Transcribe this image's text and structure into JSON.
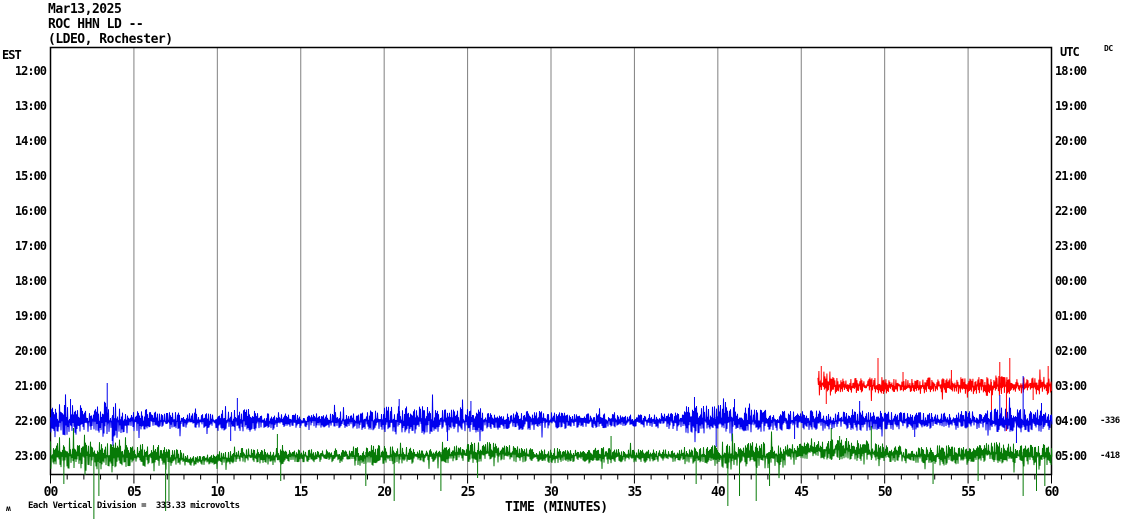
{
  "header": {
    "date": "Mar13,2025",
    "station": "ROC HHN LD --",
    "network": "(LDEO, Rochester)"
  },
  "axes": {
    "left_label": "EST",
    "right_label": "UTC",
    "dc_label": "DC",
    "left_times": [
      "12:00",
      "13:00",
      "14:00",
      "15:00",
      "16:00",
      "17:00",
      "18:00",
      "19:00",
      "20:00",
      "21:00",
      "22:00",
      "23:00"
    ],
    "right_times": [
      "18:00",
      "19:00",
      "20:00",
      "21:00",
      "22:00",
      "23:00",
      "00:00",
      "01:00",
      "02:00",
      "03:00",
      "04:00",
      "05:00"
    ],
    "x_labels": [
      "00",
      "05",
      "10",
      "15",
      "20",
      "25",
      "30",
      "35",
      "40",
      "45",
      "50",
      "55",
      "60"
    ],
    "x_title": "TIME (MINUTES)",
    "dc_values": [
      {
        "row": 10,
        "utc": "04:00",
        "value": "-336"
      },
      {
        "row": 11,
        "utc": "05:00",
        "value": "-418"
      }
    ]
  },
  "footer": {
    "glyph": "ʍ",
    "text": "Each Vertical Division =  333.33 microvolts"
  },
  "colors": {
    "trace_red": "#ff0000",
    "trace_blue": "#0000ee",
    "trace_green": "#077a07",
    "grid": "#808080",
    "border": "#000000",
    "text": "#000000",
    "background": "#ffffff"
  },
  "chart_data": {
    "type": "line",
    "title": "ROC HHN LD -- (LDEO, Rochester) helicorder, Mar13,2025",
    "xlabel": "TIME (MINUTES)",
    "x_range": [
      0,
      60
    ],
    "x_major_tick": 5,
    "x_minor_tick": 1,
    "grid": "vertical gray lines every 5 minutes",
    "rows_est": [
      "12:00",
      "13:00",
      "14:00",
      "15:00",
      "16:00",
      "17:00",
      "18:00",
      "19:00",
      "20:00",
      "21:00",
      "22:00",
      "23:00"
    ],
    "rows_utc": [
      "18:00",
      "19:00",
      "20:00",
      "21:00",
      "22:00",
      "23:00",
      "00:00",
      "01:00",
      "02:00",
      "03:00",
      "04:00",
      "05:00"
    ],
    "vertical_division_microvolts": 333.33,
    "amplitude_units": "pixels (one vertical division = 35 px = 333.33 microvolts)",
    "series": [
      {
        "name": "21:00 EST / 03:00 UTC",
        "color_key": "trace_red",
        "row": 9,
        "start_min": 46,
        "end_min": 60,
        "seed": 99,
        "amp_env": [
          13,
          8,
          8,
          9,
          8,
          8,
          9,
          8,
          9,
          9,
          11,
          10,
          9,
          10
        ],
        "base_off": [
          2,
          0,
          0,
          0,
          0,
          0,
          0,
          0,
          0,
          0,
          0,
          0,
          0,
          0
        ],
        "spikes": [
          {
            "m": 46.2,
            "v": 20
          },
          {
            "m": 46.5,
            "v": -18
          },
          {
            "m": 49.6,
            "v": 28
          },
          {
            "m": 51.1,
            "v": 14
          },
          {
            "m": 54.0,
            "v": 16
          },
          {
            "m": 56.4,
            "v": -24
          },
          {
            "m": 56.9,
            "v": 24
          },
          {
            "m": 57.3,
            "v": -45
          },
          {
            "m": 57.5,
            "v": 28
          },
          {
            "m": 58.9,
            "v": -14
          },
          {
            "m": 59.8,
            "v": 20
          }
        ]
      },
      {
        "name": "22:00 EST / 04:00 UTC",
        "color_key": "trace_blue",
        "row": 10,
        "start_min": 0,
        "end_min": 60,
        "dc_offset": -336,
        "seed": 42,
        "amp_env": [
          18,
          16,
          15,
          20,
          14,
          12,
          10,
          9,
          8,
          8,
          12,
          12,
          9,
          9,
          8,
          8,
          8,
          10,
          10,
          11,
          15,
          14,
          15,
          13,
          14,
          13,
          10,
          9,
          10,
          10,
          9,
          8,
          8,
          8,
          7,
          7,
          8,
          9,
          15,
          16,
          16,
          15,
          12,
          11,
          10,
          11,
          11,
          10,
          12,
          11,
          10,
          10,
          9,
          9,
          10,
          10,
          13,
          14,
          13,
          12
        ],
        "base_off": [
          0,
          0,
          0,
          0,
          0,
          0,
          0,
          0,
          0,
          0,
          0,
          0,
          0,
          0,
          0,
          0,
          0,
          0,
          0,
          0,
          0,
          0,
          0,
          0,
          0,
          0,
          0,
          0,
          0,
          0,
          0,
          0,
          0,
          0,
          0,
          0,
          0,
          0,
          0,
          0,
          0,
          0,
          0,
          0,
          0,
          0,
          0,
          0,
          0,
          0,
          0,
          0,
          0,
          0,
          0,
          0,
          0,
          0,
          0,
          0
        ],
        "spikes": [
          {
            "m": 1.2,
            "v": 22
          },
          {
            "m": 3.4,
            "v": 38
          },
          {
            "m": 3.7,
            "v": -20
          },
          {
            "m": 10.8,
            "v": -20
          },
          {
            "m": 11.2,
            "v": 23
          },
          {
            "m": 20.9,
            "v": 22
          },
          {
            "m": 23.8,
            "v": -20
          },
          {
            "m": 25.2,
            "v": 20
          },
          {
            "m": 38.6,
            "v": 24
          },
          {
            "m": 39.9,
            "v": -26
          },
          {
            "m": 41.0,
            "v": 22
          },
          {
            "m": 44.6,
            "v": -18
          },
          {
            "m": 48.5,
            "v": 20
          },
          {
            "m": 51.8,
            "v": -16
          },
          {
            "m": 56.9,
            "v": 26
          },
          {
            "m": 57.9,
            "v": -22
          },
          {
            "m": 58.3,
            "v": 45
          },
          {
            "m": 59.4,
            "v": 18
          }
        ]
      },
      {
        "name": "23:00 EST / 05:00 UTC",
        "color_key": "trace_green",
        "row": 11,
        "start_min": 0,
        "end_min": 60,
        "dc_offset": -418,
        "seed": 7,
        "amp_env": [
          15,
          15,
          17,
          14,
          13,
          12,
          11,
          9,
          6,
          6,
          7,
          8,
          9,
          11,
          7,
          7,
          7,
          8,
          11,
          11,
          10,
          9,
          8,
          9,
          9,
          11,
          11,
          9,
          9,
          8,
          8,
          7,
          7,
          9,
          7,
          7,
          7,
          8,
          9,
          11,
          15,
          15,
          14,
          13,
          9,
          9,
          11,
          12,
          11,
          10,
          9,
          8,
          9,
          11,
          10,
          9,
          11,
          11,
          12,
          13
        ],
        "base_off": [
          0,
          0,
          0,
          0,
          0,
          0,
          0,
          -2,
          -5,
          -4,
          -2,
          0,
          0,
          0,
          0,
          0,
          0,
          0,
          0,
          0,
          0,
          0,
          0,
          0,
          2,
          3,
          3,
          2,
          0,
          0,
          0,
          0,
          0,
          0,
          0,
          0,
          0,
          0,
          0,
          0,
          0,
          0,
          0,
          0,
          4,
          5,
          6,
          7,
          5,
          3,
          2,
          0,
          0,
          0,
          0,
          2,
          3,
          2,
          0,
          0
        ],
        "spikes": [
          {
            "m": 0.8,
            "v": -28
          },
          {
            "m": 2.6,
            "v": -63
          },
          {
            "m": 2.9,
            "v": -40
          },
          {
            "m": 6.9,
            "v": -55
          },
          {
            "m": 7.1,
            "v": -45
          },
          {
            "m": 13.6,
            "v": 22
          },
          {
            "m": 13.8,
            "v": -25
          },
          {
            "m": 18.9,
            "v": -30
          },
          {
            "m": 20.6,
            "v": -45
          },
          {
            "m": 23.4,
            "v": -35
          },
          {
            "m": 25.6,
            "v": -22
          },
          {
            "m": 33.6,
            "v": 20
          },
          {
            "m": 38.7,
            "v": -28
          },
          {
            "m": 40.6,
            "v": -50
          },
          {
            "m": 41.3,
            "v": -40
          },
          {
            "m": 42.3,
            "v": -45
          },
          {
            "m": 43.1,
            "v": -30
          },
          {
            "m": 46.8,
            "v": 28
          },
          {
            "m": 47.3,
            "v": 20
          },
          {
            "m": 49.2,
            "v": 30
          },
          {
            "m": 52.9,
            "v": -28
          },
          {
            "m": 55.6,
            "v": -25
          },
          {
            "m": 58.3,
            "v": -40
          },
          {
            "m": 59.1,
            "v": -35
          },
          {
            "m": 59.6,
            "v": -30
          }
        ]
      }
    ]
  }
}
